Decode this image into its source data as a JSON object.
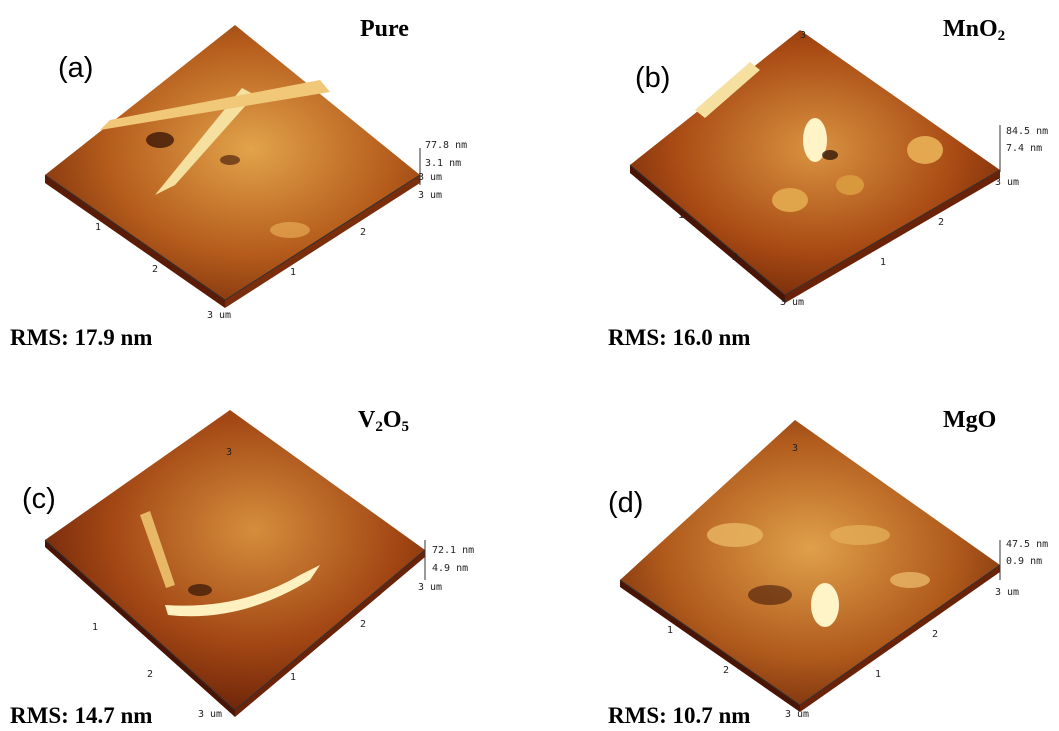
{
  "panels": [
    {
      "label": "(a)",
      "title_main": "Pure",
      "title_parts": [],
      "rms": "RMS: 17.9 nm",
      "z_max": "77.8 nm",
      "z_mid": "3.1 nm",
      "axis_unit": "3 um",
      "x_ticks": [
        "1",
        "2",
        "3 um"
      ],
      "y_ticks": [
        "1",
        "2",
        "3 um"
      ]
    },
    {
      "label": "(b)",
      "title_main": "",
      "title_parts": [
        "Mn",
        "O",
        "2"
      ],
      "rms": "RMS: 16.0 nm",
      "z_max": "84.5 nm",
      "z_mid": "7.4 nm",
      "axis_unit": "3 um",
      "x_ticks": [
        "1",
        "2",
        "3 um"
      ],
      "y_ticks": [
        "1",
        "2",
        "3"
      ]
    },
    {
      "label": "(c)",
      "title_main": "",
      "title_parts": [
        "V",
        "2",
        "O",
        "5"
      ],
      "rms": "RMS: 14.7 nm",
      "z_max": "72.1 nm",
      "z_mid": "4.9 nm",
      "axis_unit": "3 um",
      "x_ticks": [
        "1",
        "2",
        "3 um"
      ],
      "y_ticks": [
        "1",
        "2",
        "3"
      ]
    },
    {
      "label": "(d)",
      "title_main": "MgO",
      "title_parts": [],
      "rms": "RMS: 10.7 nm",
      "z_max": "47.5 nm",
      "z_mid": "0.9 nm",
      "axis_unit": "3 um",
      "x_ticks": [
        "1",
        "2",
        "3 um"
      ],
      "y_ticks": [
        "1",
        "2",
        "3"
      ]
    }
  ],
  "colors": {
    "surface_dark": "#4a1405",
    "surface_mid": "#a84a14",
    "surface_light": "#e0a54a",
    "surface_highlight": "#fff3c8"
  }
}
